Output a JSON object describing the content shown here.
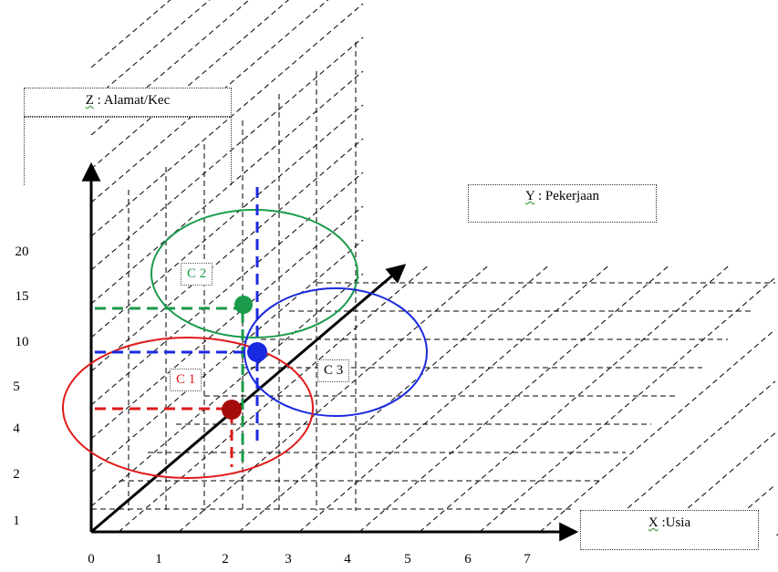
{
  "axes": {
    "z_label_prefix": "Z",
    "z_label_rest": " : Alamat/Kec",
    "y_label_prefix": "Y",
    "y_label_rest": " : Pekerjaan",
    "x_label_prefix": "X",
    "x_label_rest": " :Usia"
  },
  "x_ticks": [
    "0",
    "1",
    "2",
    "3",
    "4",
    "5",
    "6",
    "7"
  ],
  "z_ticks": [
    "1",
    "2",
    "4",
    "5",
    "10",
    "15",
    "20"
  ],
  "clusters": [
    {
      "name": "C 1",
      "color": "#e01a1a"
    },
    {
      "name": "C 2",
      "color": "#1a9a4a"
    },
    {
      "name": "C 3",
      "color": "#1a2ae0"
    }
  ],
  "colors": {
    "axis": "#000000",
    "grid": "#000000",
    "c1": "#e01a1a",
    "c2": "#1a9a4a",
    "c3": "#1a2ae0"
  }
}
